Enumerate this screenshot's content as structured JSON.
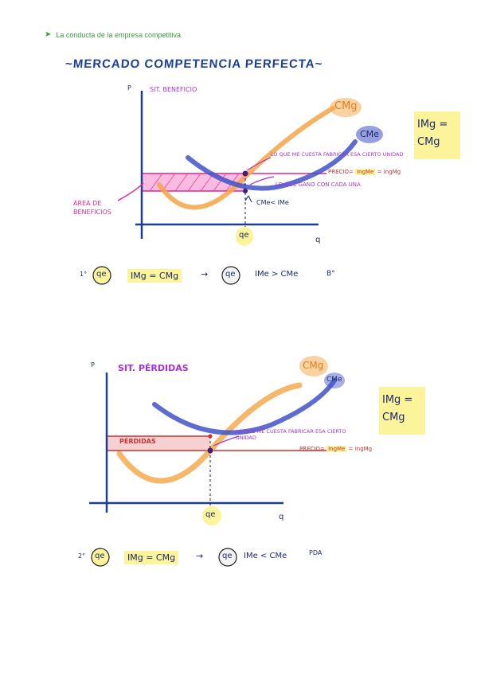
{
  "header": {
    "bullet_icon": "arrowhead-bullet-icon",
    "text": "La conducta de la empresa competitiva"
  },
  "title": "~MERCADO COMPETENCIA PERFECTA~",
  "graph1": {
    "p_axis": "P",
    "q_axis": "q",
    "situation": "SIT. BENEFICIO",
    "cmg": "CMg",
    "cme": "CMe",
    "note_cost": "LO QUE ME CUESTA FABRICAR ESA CIERTO UNIDAD",
    "note_price_prefix": "PRECIO=",
    "note_price_hl": "IngMe",
    "note_price_suffix": "= IngMg",
    "note_gain": "LO QUE GANO CON CADA UNA",
    "cme_lt": "CMe< IMe",
    "area_label": "ÁREA DE BENEFICIOS",
    "qe": "qe",
    "box": [
      "IMg =",
      "CMg"
    ]
  },
  "eq1": {
    "num": "1°",
    "qe": "qe",
    "eq": "IMg = CMg",
    "arrow": "→",
    "qe2": "qe",
    "cond": "IMe > CMe",
    "result": "B°"
  },
  "graph2": {
    "p_axis": "P",
    "q_axis": "q",
    "situation": "SIT. PÉRDIDAS",
    "cmg": "CMg",
    "cme": "CMe",
    "note_cost": "LO QUE ME CUESTA FABRICAR ESA CIERTO UNIDAD",
    "note_price_prefix": "PRECIO=",
    "note_price_hl": "IngMe",
    "note_price_suffix": "= IngMg",
    "loss_label": "PÉRDIDAS",
    "qe": "qe",
    "box": [
      "IMg =",
      "CMg"
    ]
  },
  "eq2": {
    "num": "2°",
    "qe": "qe",
    "eq": "IMg = CMg",
    "arrow": "→",
    "qe2": "qe",
    "cond": "IMe < CMe",
    "result": "PDA"
  },
  "colors": {
    "navy": "#1b3f94",
    "orange": "#f4a546",
    "blue": "#3f52c8",
    "purple": "#a733d4",
    "magenta": "#e22891",
    "red": "#c9312b",
    "yellow": "#fbf49a",
    "green": "#3d9a3b"
  }
}
